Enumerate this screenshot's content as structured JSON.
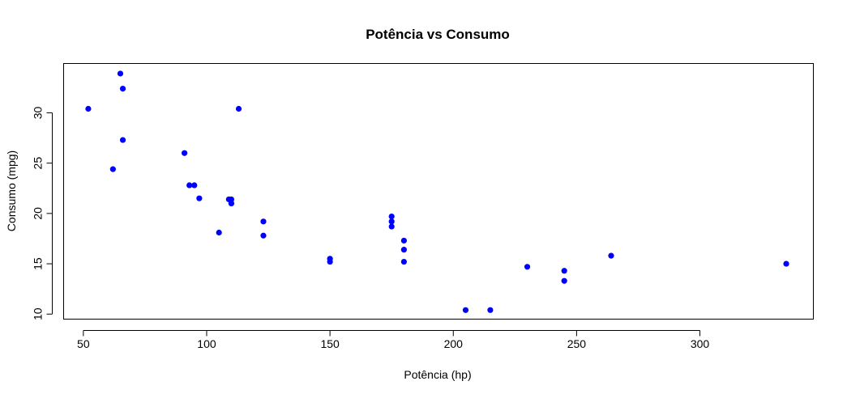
{
  "chart_data": {
    "type": "scatter",
    "title": "Potência vs Consumo",
    "xlabel": "Potência (hp)",
    "ylabel": "Consumo (mpg)",
    "xlim": [
      42,
      346
    ],
    "ylim": [
      9.5,
      34.9
    ],
    "xticks": [
      50,
      100,
      150,
      200,
      250,
      300
    ],
    "yticks": [
      10,
      15,
      20,
      25,
      30
    ],
    "grid": false,
    "point_color": "#0000ff",
    "points": [
      {
        "x": 110,
        "y": 21.0
      },
      {
        "x": 110,
        "y": 21.0
      },
      {
        "x": 93,
        "y": 22.8
      },
      {
        "x": 110,
        "y": 21.4
      },
      {
        "x": 175,
        "y": 18.7
      },
      {
        "x": 105,
        "y": 18.1
      },
      {
        "x": 245,
        "y": 14.3
      },
      {
        "x": 62,
        "y": 24.4
      },
      {
        "x": 95,
        "y": 22.8
      },
      {
        "x": 123,
        "y": 19.2
      },
      {
        "x": 123,
        "y": 17.8
      },
      {
        "x": 180,
        "y": 16.4
      },
      {
        "x": 180,
        "y": 17.3
      },
      {
        "x": 180,
        "y": 15.2
      },
      {
        "x": 205,
        "y": 10.4
      },
      {
        "x": 215,
        "y": 10.4
      },
      {
        "x": 230,
        "y": 14.7
      },
      {
        "x": 66,
        "y": 32.4
      },
      {
        "x": 52,
        "y": 30.4
      },
      {
        "x": 65,
        "y": 33.9
      },
      {
        "x": 97,
        "y": 21.5
      },
      {
        "x": 150,
        "y": 15.5
      },
      {
        "x": 150,
        "y": 15.2
      },
      {
        "x": 245,
        "y": 13.3
      },
      {
        "x": 175,
        "y": 19.2
      },
      {
        "x": 66,
        "y": 27.3
      },
      {
        "x": 91,
        "y": 26.0
      },
      {
        "x": 113,
        "y": 30.4
      },
      {
        "x": 264,
        "y": 15.8
      },
      {
        "x": 175,
        "y": 19.7
      },
      {
        "x": 335,
        "y": 15.0
      },
      {
        "x": 109,
        "y": 21.4
      }
    ]
  }
}
